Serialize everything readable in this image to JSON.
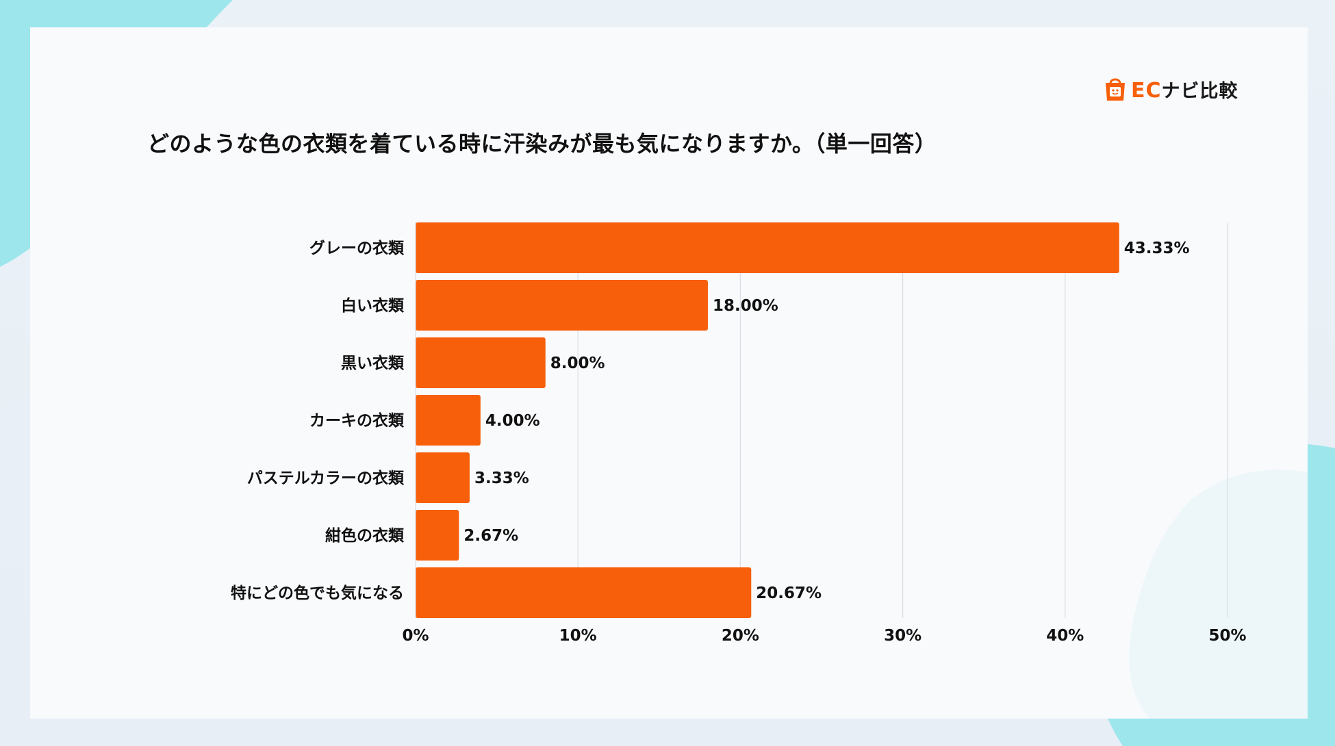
{
  "logo": {
    "brand_latin": "EC",
    "brand_jp": "ナビ比較",
    "icon": "shopping-bag-face-icon",
    "color": "#f75f0a"
  },
  "colors": {
    "bar": "#f75f0a",
    "grid": "#d9dde3",
    "text": "#111111",
    "background": "#f9fafc",
    "accent_bg": "#8fe4ea"
  },
  "chart_data": {
    "type": "bar",
    "orientation": "horizontal",
    "title": "どのような色の衣類を着ている時に汗染みが最も気になりますか。（単一回答）",
    "categories": [
      "グレーの衣類",
      "白い衣類",
      "黒い衣類",
      "カーキの衣類",
      "パステルカラーの衣類",
      "紺色の衣類",
      "特にどの色でも気になる"
    ],
    "values": [
      43.33,
      18.0,
      8.0,
      4.0,
      3.33,
      2.67,
      20.67
    ],
    "value_labels": [
      "43.33%",
      "18.00%",
      "8.00%",
      "4.00%",
      "3.33%",
      "2.67%",
      "20.67%"
    ],
    "xlim": [
      0,
      50
    ],
    "xticks": [
      0,
      10,
      20,
      30,
      40,
      50
    ],
    "xtick_labels": [
      "0%",
      "10%",
      "20%",
      "30%",
      "40%",
      "50%"
    ],
    "grid": true,
    "legend": "none"
  }
}
